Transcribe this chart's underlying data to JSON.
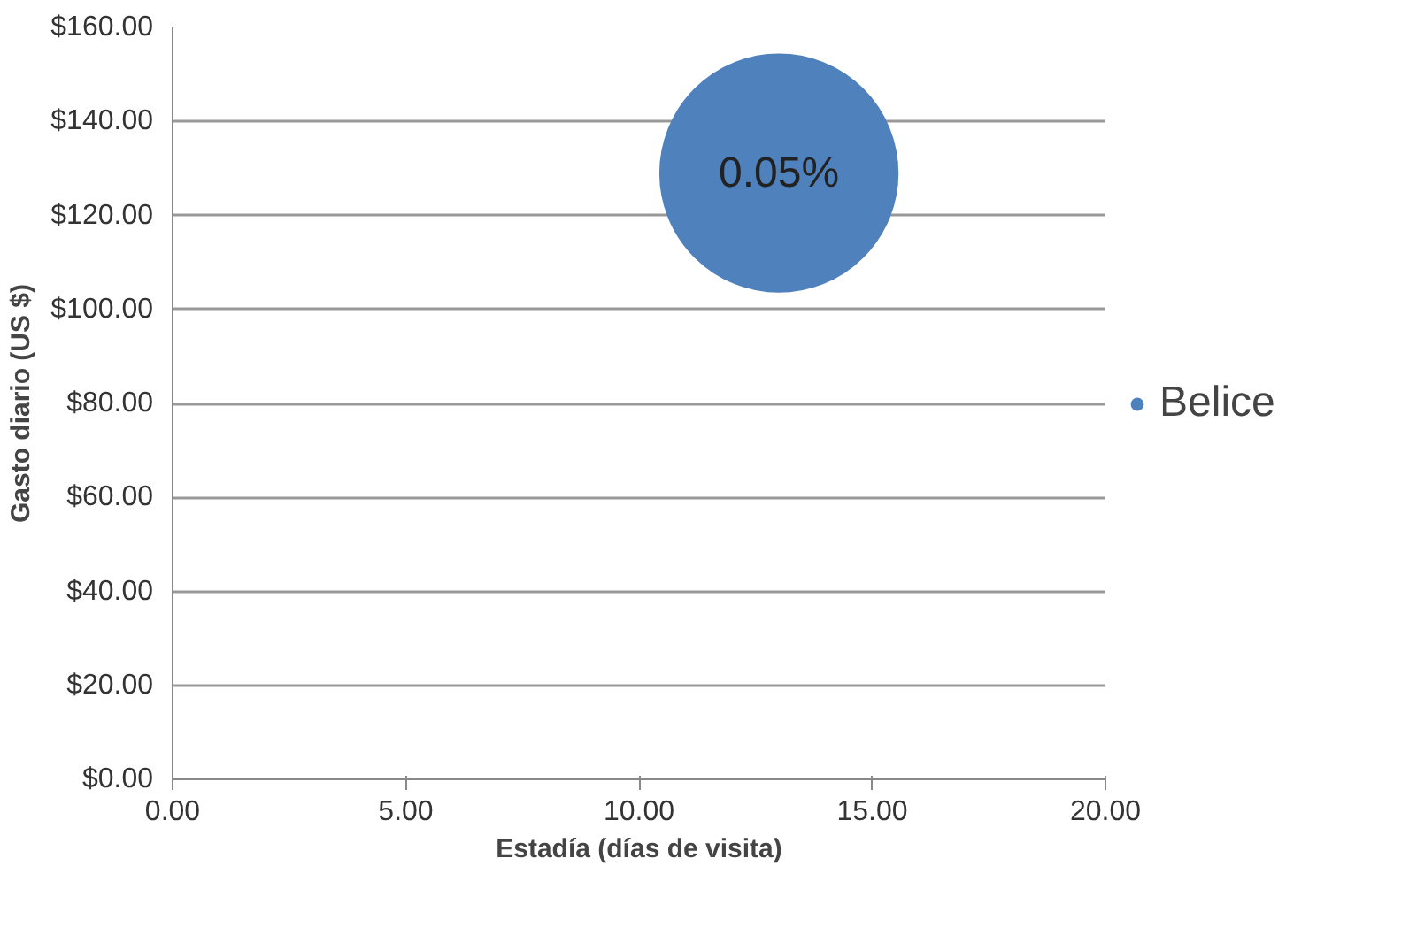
{
  "chart_data": {
    "type": "bubble",
    "xlabel": "Estadía (días de visita)",
    "ylabel": "Gasto diario (US $)",
    "x": [
      13
    ],
    "series": [
      {
        "name": "Belice",
        "color": "#4f81bd",
        "values": [
          129
        ],
        "sizes": [
          0.05
        ],
        "value_labels": [
          "0.05%"
        ]
      }
    ],
    "xlim": [
      0,
      20
    ],
    "xticks": [
      {
        "value": 0,
        "label": "0.00"
      },
      {
        "value": 5,
        "label": "5.00"
      },
      {
        "value": 10,
        "label": "10.00"
      },
      {
        "value": 15,
        "label": "15.00"
      },
      {
        "value": 20,
        "label": "20.00"
      }
    ],
    "ylim": [
      0,
      160
    ],
    "yticks": [
      {
        "value": 0,
        "label": "$0.00"
      },
      {
        "value": 20,
        "label": "$20.00"
      },
      {
        "value": 40,
        "label": "$40.00"
      },
      {
        "value": 60,
        "label": "$60.00"
      },
      {
        "value": 80,
        "label": "$80.00"
      },
      {
        "value": 100,
        "label": "$100.00"
      },
      {
        "value": 120,
        "label": "$120.00"
      },
      {
        "value": 140,
        "label": "$140.00"
      },
      {
        "value": 160,
        "label": "$160.00"
      }
    ],
    "grid": "y",
    "legend": "right"
  }
}
